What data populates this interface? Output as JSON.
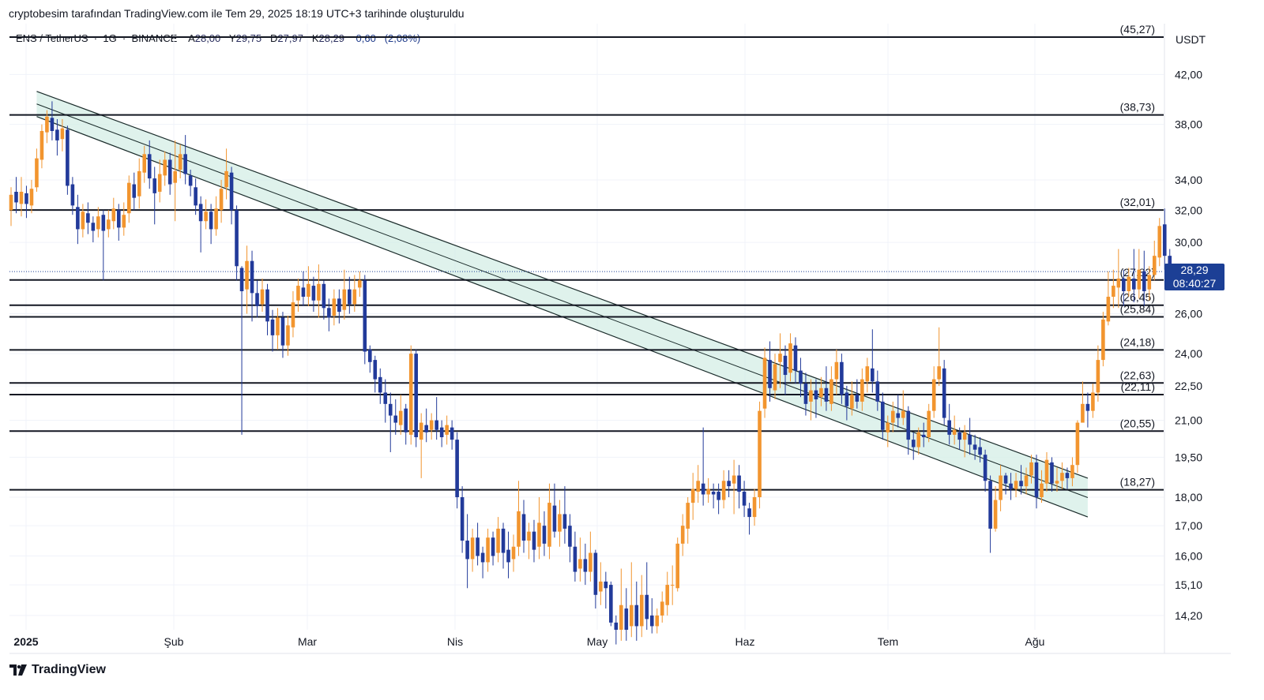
{
  "header": {
    "caption": "cryptobesim tarafından TradingView.com ile Tem 29, 2025 18:19 UTC+3 tarihinde oluşturuldu"
  },
  "symbol_bar": {
    "pair": "ENS / TetherUS",
    "interval": "1G",
    "exchange": "BINANCE",
    "open_label": "A",
    "open": "28,00",
    "high_label": "Y",
    "high": "29,75",
    "low_label": "D",
    "low": "27,97",
    "close_label": "K",
    "close": "28,29",
    "change": "0,60",
    "change_pct": "(2,08%)"
  },
  "axis": {
    "unit": "USDT",
    "price_ticks": [
      "42,00",
      "38,00",
      "34,00",
      "32,00",
      "30,00",
      "26,00",
      "24,00",
      "22,50",
      "21,00",
      "19,50",
      "18,00",
      "17,00",
      "16,00",
      "15,10",
      "14,20"
    ],
    "time_ticks": [
      "2025",
      "Şub",
      "Mar",
      "Nis",
      "May",
      "Haz",
      "Tem",
      "Ağu"
    ]
  },
  "price_tag": {
    "price": "28,29",
    "countdown": "08:40:27"
  },
  "colors": {
    "up": "#f2952f",
    "down": "#223a9a",
    "channel_fill": "#d4ede6",
    "level_line": "#131722",
    "tag": "#1c3f95"
  },
  "footer": {
    "brand": "TradingView"
  },
  "chart_data": {
    "type": "candlestick",
    "scale": "log",
    "ylim": [
      13.8,
      46.5
    ],
    "current_price": 28.29,
    "levels": [
      {
        "label": "(45,27)",
        "value": 45.27
      },
      {
        "label": "(38,73)",
        "value": 38.73
      },
      {
        "label": "(32,01)",
        "value": 32.01
      },
      {
        "label": "(27,82)",
        "value": 27.82
      },
      {
        "label": "(26,45)",
        "value": 26.45
      },
      {
        "label": "(25,84)",
        "value": 25.84
      },
      {
        "label": "(24,18)",
        "value": 24.18
      },
      {
        "label": "(22,63)",
        "value": 22.63
      },
      {
        "label": "(22,11)",
        "value": 22.11
      },
      {
        "label": "(20,55)",
        "value": 20.55
      },
      {
        "label": "(18,27)",
        "value": 18.27
      }
    ],
    "channel": {
      "upper": [
        {
          "day": 5,
          "value": 40.6
        },
        {
          "day": 210,
          "value": 18.7
        }
      ],
      "lower": [
        {
          "day": 5,
          "value": 38.6
        },
        {
          "day": 210,
          "value": 17.3
        }
      ]
    },
    "candles": [
      [
        32.0,
        33.0,
        31.0,
        33.5
      ],
      [
        33.2,
        32.5,
        31.8,
        34.2
      ],
      [
        32.4,
        33.2,
        31.6,
        34.2
      ],
      [
        33.1,
        32.4,
        31.5,
        33.6
      ],
      [
        32.3,
        33.4,
        31.8,
        34.0
      ],
      [
        33.5,
        35.5,
        33.2,
        36.2
      ],
      [
        35.4,
        37.5,
        34.8,
        38.0
      ],
      [
        37.4,
        38.6,
        36.6,
        39.1
      ],
      [
        38.5,
        37.5,
        36.8,
        39.8
      ],
      [
        37.6,
        36.8,
        35.7,
        38.4
      ],
      [
        36.9,
        37.7,
        36.0,
        38.4
      ],
      [
        37.6,
        33.6,
        33.0,
        37.9
      ],
      [
        33.7,
        32.3,
        31.7,
        34.2
      ],
      [
        32.2,
        30.8,
        29.9,
        33.0
      ],
      [
        30.8,
        31.9,
        30.3,
        32.4
      ],
      [
        31.8,
        31.2,
        30.5,
        32.5
      ],
      [
        31.2,
        30.7,
        30.0,
        31.6
      ],
      [
        30.8,
        31.6,
        30.3,
        32.2
      ],
      [
        31.7,
        30.7,
        27.8,
        32.0
      ],
      [
        30.8,
        31.4,
        30.3,
        32.0
      ],
      [
        31.3,
        32.1,
        30.8,
        32.8
      ],
      [
        32.0,
        30.9,
        30.1,
        32.4
      ],
      [
        30.9,
        31.7,
        30.4,
        32.5
      ],
      [
        31.8,
        33.8,
        31.2,
        34.3
      ],
      [
        33.7,
        32.8,
        32.0,
        34.5
      ],
      [
        32.9,
        34.6,
        32.1,
        35.5
      ],
      [
        34.5,
        35.8,
        33.8,
        36.4
      ],
      [
        35.8,
        34.1,
        33.4,
        36.8
      ],
      [
        34.1,
        33.1,
        31.1,
        34.9
      ],
      [
        33.2,
        34.4,
        32.5,
        35.4
      ],
      [
        34.3,
        35.4,
        33.6,
        36.0
      ],
      [
        35.4,
        33.7,
        33.0,
        35.9
      ],
      [
        33.8,
        34.6,
        31.3,
        36.8
      ],
      [
        34.7,
        35.8,
        34.1,
        36.5
      ],
      [
        35.8,
        34.4,
        33.7,
        37.2
      ],
      [
        34.3,
        33.6,
        32.9,
        34.7
      ],
      [
        33.5,
        32.3,
        31.7,
        34.1
      ],
      [
        32.4,
        31.3,
        29.4,
        32.9
      ],
      [
        31.3,
        31.9,
        30.8,
        32.7
      ],
      [
        31.9,
        30.8,
        29.9,
        32.4
      ],
      [
        30.8,
        32.1,
        30.4,
        32.9
      ],
      [
        32.0,
        33.4,
        31.2,
        34.0
      ],
      [
        33.5,
        34.6,
        32.7,
        36.2
      ],
      [
        34.5,
        32.0,
        31.1,
        34.9
      ],
      [
        32.0,
        28.6,
        27.8,
        32.3
      ],
      [
        28.5,
        27.2,
        20.4,
        28.6
      ],
      [
        27.3,
        28.9,
        26.0,
        29.8
      ],
      [
        28.9,
        27.1,
        25.6,
        29.5
      ],
      [
        27.1,
        26.4,
        25.8,
        27.8
      ],
      [
        26.5,
        27.3,
        26.1,
        27.9
      ],
      [
        27.3,
        25.6,
        24.9,
        27.6
      ],
      [
        25.7,
        24.9,
        24.1,
        26.2
      ],
      [
        24.9,
        25.8,
        24.2,
        26.3
      ],
      [
        25.8,
        24.4,
        23.8,
        26.1
      ],
      [
        24.4,
        25.4,
        23.9,
        25.9
      ],
      [
        25.3,
        26.6,
        24.8,
        27.2
      ],
      [
        26.7,
        27.5,
        26.1,
        27.9
      ],
      [
        27.4,
        26.9,
        26.4,
        28.3
      ],
      [
        26.9,
        27.6,
        26.4,
        28.6
      ],
      [
        27.5,
        26.7,
        26.1,
        28.0
      ],
      [
        26.7,
        27.6,
        25.8,
        28.7
      ],
      [
        27.6,
        26.3,
        25.7,
        27.8
      ],
      [
        26.3,
        25.8,
        25.1,
        26.8
      ],
      [
        25.9,
        26.8,
        25.4,
        27.3
      ],
      [
        26.8,
        26.1,
        25.5,
        27.3
      ],
      [
        26.2,
        27.3,
        25.7,
        28.4
      ],
      [
        27.3,
        26.5,
        26.0,
        28.0
      ],
      [
        26.5,
        27.3,
        26.1,
        28.1
      ],
      [
        27.4,
        27.8,
        26.9,
        28.3
      ],
      [
        27.8,
        24.1,
        23.5,
        28.1
      ],
      [
        24.2,
        23.6,
        23.1,
        24.4
      ],
      [
        23.7,
        22.8,
        22.2,
        23.9
      ],
      [
        22.9,
        22.2,
        21.7,
        23.3
      ],
      [
        22.2,
        21.7,
        20.9,
        22.8
      ],
      [
        21.7,
        21.2,
        19.7,
        22.2
      ],
      [
        21.2,
        20.9,
        20.4,
        21.9
      ],
      [
        20.8,
        21.4,
        20.4,
        22.1
      ],
      [
        21.5,
        20.5,
        20.0,
        21.7
      ],
      [
        20.4,
        24.0,
        20.0,
        24.4
      ],
      [
        24.0,
        20.3,
        19.9,
        24.2
      ],
      [
        20.2,
        20.9,
        18.7,
        21.3
      ],
      [
        20.8,
        20.5,
        20.1,
        21.5
      ],
      [
        20.6,
        21.0,
        20.2,
        21.3
      ],
      [
        21.0,
        20.6,
        20.2,
        22.0
      ],
      [
        20.7,
        20.3,
        19.9,
        21.0
      ],
      [
        20.4,
        20.8,
        20.0,
        21.2
      ],
      [
        20.7,
        20.2,
        19.8,
        21.0
      ],
      [
        20.2,
        18.0,
        17.6,
        20.5
      ],
      [
        18.0,
        16.5,
        16.1,
        18.4
      ],
      [
        16.5,
        15.9,
        15.0,
        17.4
      ],
      [
        15.9,
        16.6,
        15.5,
        16.9
      ],
      [
        16.6,
        16.0,
        15.7,
        17.1
      ],
      [
        16.1,
        15.8,
        15.3,
        16.3
      ],
      [
        15.8,
        16.6,
        15.5,
        16.9
      ],
      [
        16.6,
        16.0,
        15.7,
        16.8
      ],
      [
        16.1,
        16.9,
        15.8,
        17.3
      ],
      [
        16.9,
        16.1,
        15.6,
        17.1
      ],
      [
        16.2,
        15.8,
        15.3,
        16.8
      ],
      [
        15.9,
        16.3,
        15.5,
        16.7
      ],
      [
        16.3,
        17.5,
        16.0,
        18.6
      ],
      [
        17.4,
        16.5,
        16.1,
        17.9
      ],
      [
        16.5,
        16.8,
        15.9,
        17.1
      ],
      [
        16.8,
        16.2,
        15.8,
        17.2
      ],
      [
        16.3,
        17.1,
        15.9,
        18.0
      ],
      [
        17.0,
        16.4,
        16.0,
        17.5
      ],
      [
        16.3,
        17.8,
        15.9,
        18.5
      ],
      [
        17.7,
        16.8,
        16.6,
        18.5
      ],
      [
        16.8,
        17.4,
        16.3,
        17.9
      ],
      [
        17.4,
        16.9,
        16.4,
        18.4
      ],
      [
        17.0,
        16.3,
        15.8,
        17.4
      ],
      [
        16.3,
        15.5,
        15.2,
        16.8
      ],
      [
        15.6,
        15.9,
        15.2,
        16.6
      ],
      [
        15.9,
        15.5,
        15.1,
        16.4
      ],
      [
        15.5,
        16.1,
        15.2,
        16.8
      ],
      [
        16.1,
        14.8,
        14.4,
        16.2
      ],
      [
        14.9,
        15.2,
        14.5,
        15.8
      ],
      [
        15.2,
        15.0,
        14.4,
        15.5
      ],
      [
        15.1,
        14.0,
        13.9,
        15.2
      ],
      [
        14.0,
        13.8,
        13.4,
        14.2
      ],
      [
        13.8,
        14.5,
        13.5,
        15.6
      ],
      [
        14.4,
        13.8,
        13.5,
        15.0
      ],
      [
        13.9,
        14.5,
        13.6,
        15.8
      ],
      [
        14.5,
        13.9,
        13.5,
        15.2
      ],
      [
        13.9,
        14.8,
        13.6,
        15.4
      ],
      [
        14.8,
        14.1,
        13.8,
        15.8
      ],
      [
        14.2,
        13.9,
        13.7,
        14.7
      ],
      [
        13.9,
        14.2,
        13.7,
        14.4
      ],
      [
        14.2,
        14.6,
        14.0,
        14.9
      ],
      [
        14.5,
        15.1,
        14.2,
        15.5
      ],
      [
        15.1,
        15.1,
        14.5,
        15.7
      ],
      [
        15.0,
        16.4,
        14.9,
        16.6
      ],
      [
        16.4,
        17.0,
        16.0,
        17.4
      ],
      [
        16.9,
        17.8,
        16.4,
        18.0
      ],
      [
        17.8,
        18.3,
        17.2,
        18.9
      ],
      [
        18.2,
        18.6,
        17.8,
        19.2
      ],
      [
        18.5,
        18.1,
        17.7,
        20.7
      ],
      [
        18.1,
        18.3,
        17.8,
        18.7
      ],
      [
        18.2,
        18.1,
        17.6,
        18.5
      ],
      [
        18.2,
        17.9,
        17.4,
        18.5
      ],
      [
        17.9,
        18.6,
        17.6,
        19.0
      ],
      [
        18.6,
        18.4,
        18.0,
        19.0
      ],
      [
        18.5,
        18.8,
        17.4,
        19.4
      ],
      [
        18.8,
        18.2,
        17.6,
        19.2
      ],
      [
        18.2,
        17.7,
        17.3,
        18.6
      ],
      [
        17.6,
        17.3,
        16.7,
        17.8
      ],
      [
        17.3,
        18.0,
        17.0,
        18.3
      ],
      [
        18.0,
        21.4,
        17.6,
        21.8
      ],
      [
        21.5,
        23.8,
        21.1,
        24.3
      ],
      [
        23.7,
        22.4,
        21.8,
        24.6
      ],
      [
        22.3,
        23.5,
        21.9,
        24.0
      ],
      [
        23.6,
        24.0,
        22.4,
        25.0
      ],
      [
        23.9,
        23.0,
        22.1,
        24.4
      ],
      [
        23.1,
        24.5,
        22.7,
        25.0
      ],
      [
        24.4,
        23.2,
        22.6,
        24.8
      ],
      [
        23.2,
        22.6,
        22.0,
        23.8
      ],
      [
        22.6,
        21.7,
        21.2,
        23.1
      ],
      [
        21.8,
        22.3,
        21.0,
        22.8
      ],
      [
        22.3,
        21.9,
        21.1,
        22.8
      ],
      [
        22.0,
        22.4,
        21.6,
        22.9
      ],
      [
        22.4,
        21.8,
        21.4,
        23.4
      ],
      [
        21.7,
        22.8,
        21.4,
        23.4
      ],
      [
        22.8,
        23.6,
        22.1,
        24.2
      ],
      [
        23.6,
        22.1,
        21.7,
        24.0
      ],
      [
        22.2,
        21.6,
        21.0,
        22.5
      ],
      [
        21.5,
        22.1,
        21.2,
        22.7
      ],
      [
        22.1,
        21.8,
        21.5,
        22.8
      ],
      [
        21.8,
        22.8,
        21.4,
        23.3
      ],
      [
        22.7,
        23.4,
        22.2,
        23.8
      ],
      [
        23.3,
        22.7,
        22.2,
        25.2
      ],
      [
        22.7,
        21.8,
        21.4,
        23.2
      ],
      [
        21.8,
        20.6,
        20.2,
        22.2
      ],
      [
        20.5,
        20.9,
        19.9,
        21.2
      ],
      [
        20.9,
        21.4,
        20.5,
        21.8
      ],
      [
        21.3,
        21.1,
        20.7,
        22.1
      ],
      [
        21.1,
        21.4,
        20.8,
        22.3
      ],
      [
        21.4,
        20.2,
        19.6,
        21.6
      ],
      [
        20.2,
        19.9,
        19.4,
        20.5
      ],
      [
        19.9,
        20.5,
        19.6,
        20.7
      ],
      [
        20.4,
        20.3,
        19.9,
        20.9
      ],
      [
        20.3,
        21.4,
        20.1,
        21.7
      ],
      [
        21.4,
        22.8,
        21.1,
        23.4
      ],
      [
        22.8,
        23.4,
        22.5,
        25.3
      ],
      [
        23.3,
        21.1,
        20.8,
        23.7
      ],
      [
        21.0,
        20.4,
        20.0,
        21.7
      ],
      [
        20.4,
        20.6,
        20.0,
        21.2
      ],
      [
        20.5,
        20.2,
        19.8,
        20.7
      ],
      [
        20.2,
        20.5,
        19.5,
        20.8
      ],
      [
        20.4,
        20.0,
        19.6,
        21.1
      ],
      [
        20.0,
        19.8,
        19.4,
        20.4
      ],
      [
        19.9,
        19.6,
        19.3,
        20.3
      ],
      [
        19.6,
        18.6,
        18.2,
        19.8
      ],
      [
        18.6,
        16.9,
        16.1,
        18.8
      ],
      [
        16.9,
        17.9,
        16.8,
        18.4
      ],
      [
        17.9,
        18.8,
        17.5,
        19.2
      ],
      [
        18.8,
        18.5,
        18.1,
        18.9
      ],
      [
        18.5,
        18.3,
        17.9,
        18.9
      ],
      [
        18.3,
        18.6,
        18.0,
        18.9
      ],
      [
        18.6,
        18.4,
        18.1,
        19.2
      ],
      [
        18.4,
        18.8,
        18.1,
        19.1
      ],
      [
        18.8,
        19.3,
        18.5,
        19.6
      ],
      [
        19.3,
        18.0,
        17.6,
        19.6
      ],
      [
        18.0,
        18.5,
        17.8,
        19.0
      ],
      [
        18.5,
        19.4,
        18.2,
        19.7
      ],
      [
        19.3,
        18.5,
        18.2,
        19.5
      ],
      [
        18.5,
        18.6,
        18.2,
        19.1
      ],
      [
        18.6,
        18.9,
        18.3,
        19.3
      ],
      [
        18.9,
        18.7,
        18.3,
        19.1
      ],
      [
        18.7,
        19.2,
        18.4,
        19.5
      ],
      [
        19.2,
        20.9,
        18.9,
        21.0
      ],
      [
        20.9,
        21.7,
        21.0,
        22.7
      ],
      [
        21.7,
        21.4,
        20.7,
        22.2
      ],
      [
        21.4,
        22.2,
        21.1,
        22.6
      ],
      [
        22.2,
        23.7,
        21.8,
        24.4
      ],
      [
        23.7,
        25.7,
        23.4,
        26.1
      ],
      [
        25.6,
        26.9,
        25.4,
        28.3
      ],
      [
        26.9,
        27.5,
        26.3,
        28.4
      ],
      [
        27.4,
        27.9,
        26.3,
        29.6
      ],
      [
        27.9,
        27.2,
        26.4,
        28.4
      ],
      [
        27.2,
        28.0,
        26.9,
        28.5
      ],
      [
        27.9,
        27.3,
        26.6,
        29.6
      ],
      [
        27.3,
        28.4,
        26.8,
        29.6
      ],
      [
        28.3,
        27.2,
        26.4,
        29.5
      ],
      [
        27.3,
        28.1,
        26.7,
        28.6
      ],
      [
        28.1,
        29.2,
        27.8,
        30.1
      ],
      [
        29.1,
        31.0,
        28.6,
        31.5
      ],
      [
        31.1,
        29.2,
        28.4,
        32.1
      ],
      [
        29.2,
        28.3,
        27.8,
        29.6
      ]
    ]
  }
}
